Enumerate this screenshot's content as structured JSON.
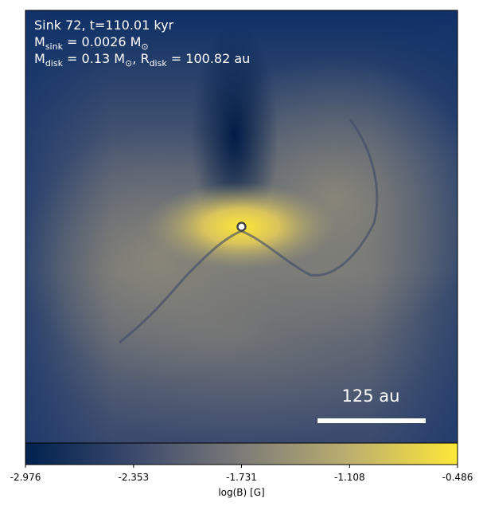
{
  "chart_data": {
    "type": "image-map",
    "annotations": [
      [
        {
          "text": "Sink 72, t=110.01 kyr"
        }
      ],
      [
        {
          "text": "M"
        },
        {
          "text": "sink",
          "sub": true
        },
        {
          "text": " = 0.0026 M"
        },
        {
          "text": "⊙",
          "sub": true
        }
      ],
      [
        {
          "text": "M"
        },
        {
          "text": "disk",
          "sub": true
        },
        {
          "text": " = 0.13 M"
        },
        {
          "text": "⊙",
          "sub": true
        },
        {
          "text": ", R"
        },
        {
          "text": "disk",
          "sub": true
        },
        {
          "text": " = 100.82 au"
        }
      ]
    ],
    "scale_bar_label": "125 au",
    "colorbar": {
      "label": "log(B) [G]",
      "lim": [
        -2.976,
        -0.486
      ],
      "ticks": [
        -2.976,
        -2.353,
        -1.731,
        -1.108,
        -0.486
      ],
      "colormap": [
        "#00224e",
        "#3b496c",
        "#7c7b78",
        "#bcaf6f",
        "#fee838"
      ]
    }
  }
}
